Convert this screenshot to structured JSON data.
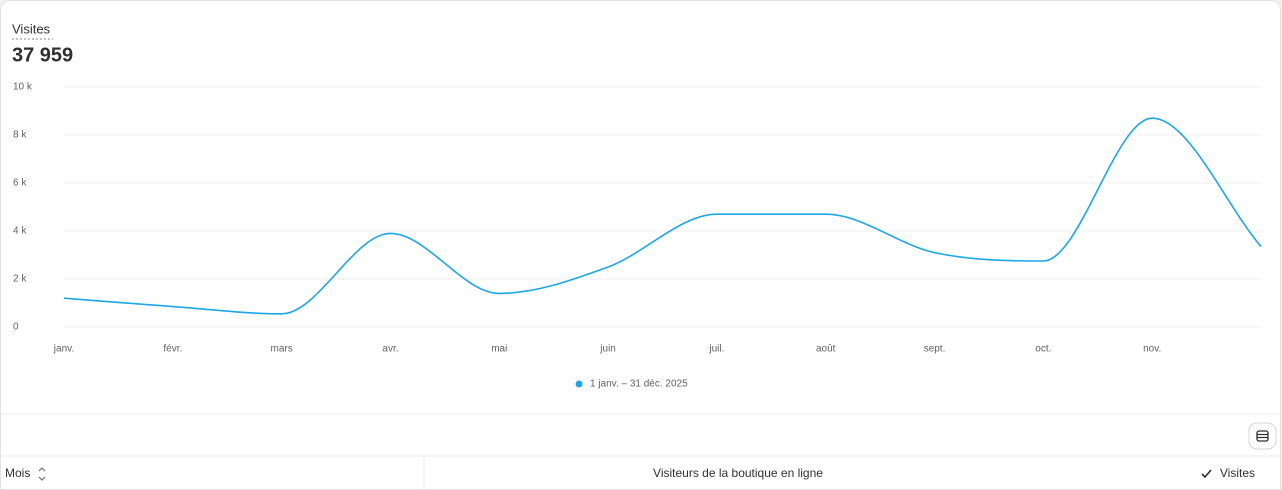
{
  "chart_data": {
    "type": "line",
    "title": "Visites",
    "total": "37 959",
    "categories": [
      "janv.",
      "févr.",
      "mars",
      "avr.",
      "mai",
      "juin",
      "juil.",
      "août",
      "sept.",
      "oct.",
      "nov.",
      null
    ],
    "series": [
      {
        "name": "1 janv. – 31 déc. 2025",
        "color": "#1ba7e8",
        "values": [
          1200,
          850,
          550,
          3900,
          1400,
          2500,
          4700,
          4700,
          3100,
          2750,
          8700,
          3350
        ]
      }
    ],
    "ylim": [
      0,
      10000
    ],
    "yticks": [
      0,
      {
        "value": 2000,
        "label": "2 k"
      },
      {
        "value": 4000,
        "label": "4 k"
      },
      {
        "value": 6000,
        "label": "6 k"
      },
      {
        "value": 8000,
        "label": "8 k"
      },
      {
        "value": 10000,
        "label": "10 k"
      }
    ],
    "grid": true,
    "smooth": true
  },
  "table_header": {
    "columns": [
      "Mois",
      "Visiteurs de la boutique en ligne",
      "Visites"
    ]
  }
}
